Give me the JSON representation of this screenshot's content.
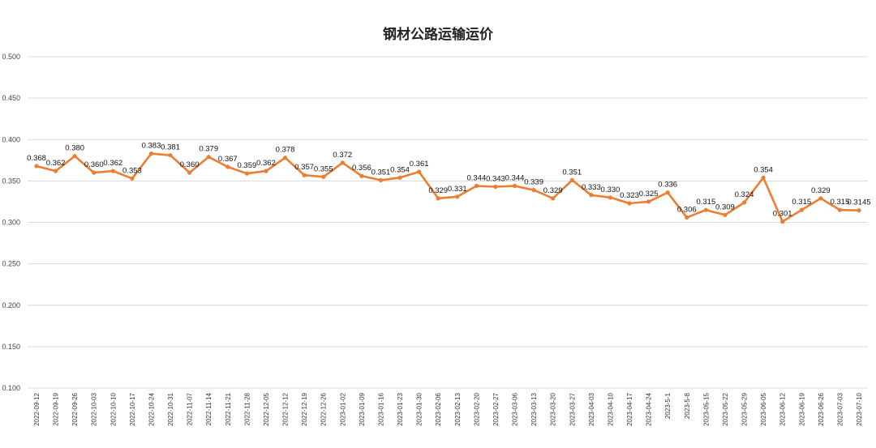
{
  "chart_data": {
    "type": "line",
    "title": "钢材公路运输运价",
    "xlabel": "",
    "ylabel": "",
    "ylim": [
      0.1,
      0.5
    ],
    "yticks": [
      "0.100",
      "0.150",
      "0.200",
      "0.250",
      "0.300",
      "0.350",
      "0.400",
      "0.450",
      "0.500"
    ],
    "grid": true,
    "legend": "none",
    "line_color": "#ED7D31",
    "categories": [
      "2022-09-12",
      "2022-09-19",
      "2022-09-26",
      "2022-10-03",
      "2022-10-10",
      "2022-10-17",
      "2022-10-24",
      "2022-10-31",
      "2022-11-07",
      "2022-11-14",
      "2022-11-21",
      "2022-11-28",
      "2022-12-05",
      "2022-12-12",
      "2022-12-19",
      "2022-12-26",
      "2023-01-02",
      "2023-01-09",
      "2023-01-16",
      "2023-01-23",
      "2023-01-30",
      "2023-02-06",
      "2023-02-13",
      "2023-02-20",
      "2023-02-27",
      "2023-03-06",
      "2023-03-13",
      "2023-03-20",
      "2023-03-27",
      "2023-04-03",
      "2023-04-10",
      "2023-04-17",
      "2023-04-24",
      "2023-5-1",
      "2023-5-8",
      "2023-05-15",
      "2023-05-22",
      "2023-05-29",
      "2023-06-05",
      "2023-06-12",
      "2023-06-19",
      "2023-06-26",
      "2023-07-03",
      "2023-07-10"
    ],
    "values": [
      0.368,
      0.362,
      0.38,
      0.36,
      0.362,
      0.353,
      0.383,
      0.381,
      0.36,
      0.379,
      0.367,
      0.359,
      0.362,
      0.378,
      0.357,
      0.355,
      0.372,
      0.356,
      0.351,
      0.354,
      0.361,
      0.329,
      0.331,
      0.344,
      0.343,
      0.344,
      0.339,
      0.329,
      0.351,
      0.333,
      0.33,
      0.323,
      0.325,
      0.336,
      0.306,
      0.315,
      0.309,
      0.324,
      0.354,
      0.301,
      0.315,
      0.329,
      0.315,
      0.3145
    ],
    "data_labels": [
      "0.368",
      "0.362",
      "0.380",
      "0.360",
      "0.362",
      "0.353",
      "0.383",
      "0.381",
      "0.360",
      "0.379",
      "0.367",
      "0.359",
      "0.362",
      "0.378",
      "0.357",
      "0.355",
      "0.372",
      "0.356",
      "0.351",
      "0.354",
      "0.361",
      "0.329",
      "0.331",
      "0.344",
      "0.343",
      "0.344",
      "0.339",
      "0.329",
      "0.351",
      "0.333",
      "0.330",
      "0.323",
      "0.325",
      "0.336",
      "0.306",
      "0.315",
      "0.309",
      "0.324",
      "0.354",
      "0.301",
      "0.315",
      "0.329",
      "0.315",
      "0.3145"
    ]
  }
}
